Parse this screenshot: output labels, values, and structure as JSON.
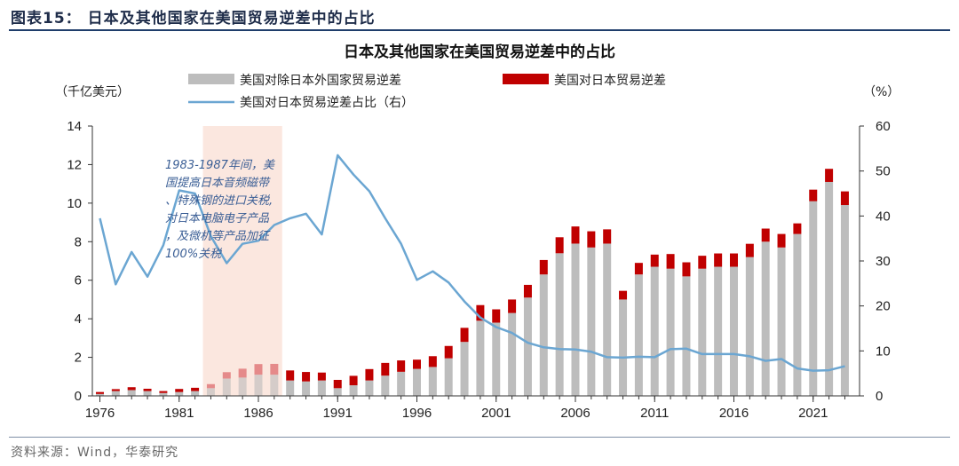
{
  "figure_title": "图表15：  日本及其他国家在美国贸易逆差中的占比",
  "source": "资料来源：Wind，华泰研究",
  "colors": {
    "gray_bar": "#bdbdbd",
    "red_bar": "#c00000",
    "highlight_gray_bar": "#d5ccc9",
    "highlight_red_bar": "#e58a8a",
    "line": "#6ba6d2",
    "shade": "#fbe7df",
    "annotation": "#3a5e95"
  },
  "chart_data": {
    "type": "bar",
    "title": "日本及其他国家在美国贸易逆差中的占比",
    "y_left_label": "（千亿美元）",
    "y_right_label": "（%）",
    "ylim_left": [
      0,
      14
    ],
    "ylim_right": [
      0,
      60
    ],
    "y_left_ticks": [
      0,
      2,
      4,
      6,
      8,
      10,
      12,
      14
    ],
    "y_right_ticks": [
      0,
      10,
      20,
      30,
      40,
      50,
      60
    ],
    "x_ticks": [
      1976,
      1981,
      1986,
      1991,
      1996,
      2001,
      2006,
      2011,
      2016,
      2021
    ],
    "years": [
      1976,
      1977,
      1978,
      1979,
      1980,
      1981,
      1982,
      1983,
      1984,
      1985,
      1986,
      1987,
      1988,
      1989,
      1990,
      1991,
      1992,
      1993,
      1994,
      1995,
      1996,
      1997,
      1998,
      1999,
      2000,
      2001,
      2002,
      2003,
      2004,
      2005,
      2006,
      2007,
      2008,
      2009,
      2010,
      2011,
      2012,
      2013,
      2014,
      2015,
      2016,
      2017,
      2018,
      2019,
      2020,
      2021,
      2022,
      2023
    ],
    "series": [
      {
        "name": "美国对除日本外国家贸易逆差",
        "kind": "bar",
        "axis": "left",
        "values": [
          0.1,
          0.25,
          0.3,
          0.25,
          0.15,
          0.2,
          0.25,
          0.4,
          0.9,
          0.95,
          1.1,
          1.1,
          0.8,
          0.75,
          0.8,
          0.4,
          0.55,
          0.8,
          1.05,
          1.25,
          1.4,
          1.5,
          1.95,
          2.8,
          3.9,
          3.8,
          4.3,
          5.1,
          6.3,
          7.4,
          7.9,
          7.7,
          7.9,
          5.0,
          6.3,
          6.7,
          6.6,
          6.2,
          6.6,
          6.7,
          6.7,
          7.2,
          8.0,
          7.7,
          8.4,
          10.1,
          11.1,
          9.9
        ]
      },
      {
        "name": "美国对日本贸易逆差",
        "kind": "bar",
        "axis": "left",
        "values": [
          0.1,
          0.1,
          0.15,
          0.12,
          0.1,
          0.16,
          0.17,
          0.21,
          0.33,
          0.46,
          0.55,
          0.56,
          0.52,
          0.49,
          0.41,
          0.43,
          0.49,
          0.59,
          0.66,
          0.59,
          0.48,
          0.56,
          0.64,
          0.73,
          0.81,
          0.69,
          0.7,
          0.66,
          0.75,
          0.83,
          0.89,
          0.84,
          0.74,
          0.45,
          0.6,
          0.63,
          0.76,
          0.73,
          0.67,
          0.69,
          0.69,
          0.69,
          0.68,
          0.7,
          0.55,
          0.6,
          0.68,
          0.71
        ]
      },
      {
        "name": "美国对日本贸易逆差占比（右）",
        "kind": "line",
        "axis": "right",
        "values": [
          39.5,
          24.8,
          32.0,
          26.5,
          33.5,
          45.7,
          45.0,
          35.5,
          29.5,
          33.8,
          34.5,
          38.0,
          39.5,
          40.5,
          35.9,
          53.5,
          49.2,
          45.5,
          39.5,
          33.8,
          25.8,
          27.7,
          25.2,
          21.0,
          17.4,
          15.3,
          14.0,
          11.8,
          10.8,
          10.4,
          10.3,
          9.8,
          8.6,
          8.5,
          8.7,
          8.6,
          10.4,
          10.5,
          9.3,
          9.3,
          9.3,
          8.8,
          7.8,
          8.2,
          6.1,
          5.6,
          5.7,
          6.6
        ]
      }
    ],
    "highlight_range": [
      1983,
      1987
    ],
    "annotation": [
      "1983-1987年间，美",
      "国提高日本音频磁带",
      "、特殊钢的进口关税,",
      "对日本电脑电子产品",
      "，及微机等产品加征",
      "100%关税"
    ]
  }
}
